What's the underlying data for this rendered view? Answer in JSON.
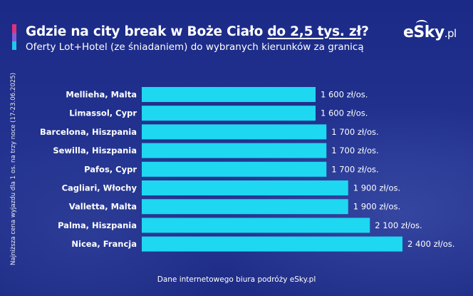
{
  "header": {
    "title_main": "Gdzie na city break w Boże Ciało ",
    "title_highlight": "do 2,5 tys. zł",
    "title_end": "?",
    "subtitle": "Oferty Lot+Hotel (ze śniadaniem) do wybranych kierunków za granicą",
    "accent_colors": [
      "#e0317e",
      "#7f5fd6",
      "#1ec8e8"
    ]
  },
  "logo": {
    "name": "eSky",
    "tld": ".pl"
  },
  "side_note": "Najniższa cena wyjazdu dla 1 os. na trzy noce (17-23.06.2025)",
  "footer": {
    "source": "Dane internetowego biura podróży eSky.pl"
  },
  "chart_data": {
    "type": "bar",
    "orientation": "horizontal",
    "categories": [
      "Mellieha, Malta",
      "Limassol, Cypr",
      "Barcelona, Hiszpania",
      "Sewilla, Hiszpania",
      "Pafos, Cypr",
      "Cagliari, Włochy",
      "Valletta, Malta",
      "Palma, Hiszpania",
      "Nicea, Francja"
    ],
    "values": [
      1600,
      1600,
      1700,
      1700,
      1700,
      1900,
      1900,
      2100,
      2400
    ],
    "value_labels": [
      "1 600 zł/os.",
      "1 600 zł/os.",
      "1 700 zł/os.",
      "1 700 zł/os.",
      "1 700 zł/os.",
      "1 900 zł/os.",
      "1 900 zł/os.",
      "2 100 zł/os.",
      "2 400 zł/os."
    ],
    "bar_color": "#1ed7f0",
    "grid": false
  }
}
